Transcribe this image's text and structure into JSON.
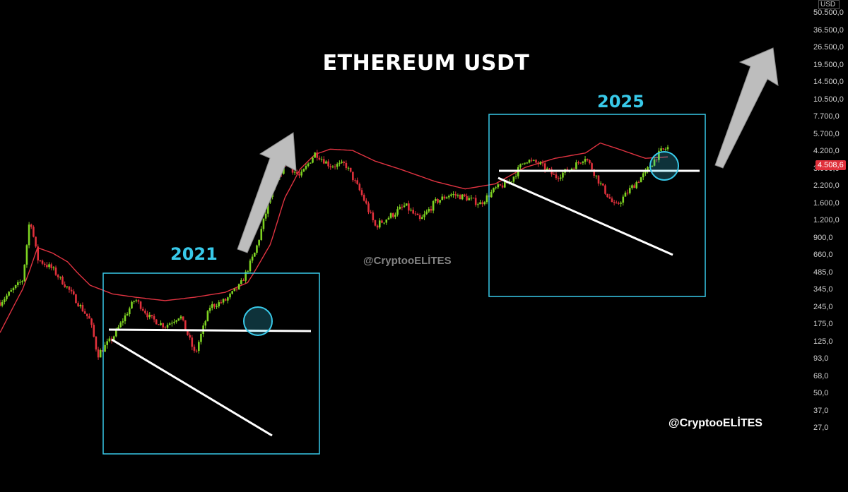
{
  "title": "ETHEREUM USDT",
  "labels": {
    "year_left": "2021",
    "year_right": "2025"
  },
  "watermarks": {
    "center": "@CryptooELİTES",
    "bottom_right": "@CryptooELİTES"
  },
  "colors": {
    "background": "#000000",
    "up_candle": "#7ed321",
    "down_candle": "#e0303b",
    "moving_average": "#e03341",
    "box": "#38c9e9",
    "trendline": "#ffffff",
    "arrow": "#bdbdbd",
    "year_text": "#38c9e9"
  },
  "chart_data": {
    "type": "line",
    "title": "ETHEREUM USDT",
    "scale": "log",
    "y_unit": "USD",
    "y_ticks": [
      "50.500,0",
      "36.500,0",
      "26.500,0",
      "19.500,0",
      "14.500,0",
      "10.500,0",
      "7.700,0",
      "5.700,0",
      "4.200,0",
      "3.000,0",
      "2.200,0",
      "1.600,0",
      "1.200,0",
      "900,0",
      "660,0",
      "485,0",
      "345,0",
      "245,0",
      "175,0",
      "125,0",
      "93,0",
      "68,0",
      "50,0",
      "37,0",
      "27,0"
    ],
    "last_price_label": "4.508,6",
    "price_path": [
      {
        "t": 0,
        "close": 270
      },
      {
        "t": 3,
        "close": 420
      },
      {
        "t": 4,
        "close": 1300
      },
      {
        "t": 5,
        "close": 620
      },
      {
        "t": 7,
        "close": 520
      },
      {
        "t": 9,
        "close": 360
      },
      {
        "t": 12,
        "close": 190
      },
      {
        "t": 13,
        "close": 100
      },
      {
        "t": 15,
        "close": 135
      },
      {
        "t": 18,
        "close": 290
      },
      {
        "t": 20,
        "close": 200
      },
      {
        "t": 22,
        "close": 170
      },
      {
        "t": 24,
        "close": 210
      },
      {
        "t": 26,
        "close": 100
      },
      {
        "t": 28,
        "close": 250
      },
      {
        "t": 30,
        "close": 280
      },
      {
        "t": 32,
        "close": 380
      },
      {
        "t": 34,
        "close": 700
      },
      {
        "t": 36,
        "close": 1800
      },
      {
        "t": 38,
        "close": 3400
      },
      {
        "t": 40,
        "close": 2600
      },
      {
        "t": 42,
        "close": 4100
      },
      {
        "t": 44,
        "close": 3200
      },
      {
        "t": 46,
        "close": 3300
      },
      {
        "t": 48,
        "close": 2000
      },
      {
        "t": 50,
        "close": 1100
      },
      {
        "t": 52,
        "close": 1300
      },
      {
        "t": 54,
        "close": 1550
      },
      {
        "t": 56,
        "close": 1200
      },
      {
        "t": 58,
        "close": 1650
      },
      {
        "t": 60,
        "close": 1900
      },
      {
        "t": 62,
        "close": 1800
      },
      {
        "t": 64,
        "close": 1600
      },
      {
        "t": 66,
        "close": 2100
      },
      {
        "t": 68,
        "close": 2400
      },
      {
        "t": 70,
        "close": 3600
      },
      {
        "t": 72,
        "close": 3300
      },
      {
        "t": 74,
        "close": 2600
      },
      {
        "t": 76,
        "close": 3000
      },
      {
        "t": 78,
        "close": 3800
      },
      {
        "t": 80,
        "close": 2300
      },
      {
        "t": 82,
        "close": 1500
      },
      {
        "t": 84,
        "close": 2100
      },
      {
        "t": 86,
        "close": 2800
      },
      {
        "t": 88,
        "close": 4200
      },
      {
        "t": 89,
        "close": 4508.6
      }
    ],
    "moving_average_path": [
      {
        "t": 0,
        "v": 150
      },
      {
        "t": 3,
        "v": 350
      },
      {
        "t": 5,
        "v": 760
      },
      {
        "t": 7,
        "v": 690
      },
      {
        "t": 9,
        "v": 590
      },
      {
        "t": 12,
        "v": 380
      },
      {
        "t": 15,
        "v": 320
      },
      {
        "t": 18,
        "v": 300
      },
      {
        "t": 22,
        "v": 280
      },
      {
        "t": 26,
        "v": 300
      },
      {
        "t": 30,
        "v": 330
      },
      {
        "t": 33,
        "v": 400
      },
      {
        "t": 36,
        "v": 800
      },
      {
        "t": 38,
        "v": 1800
      },
      {
        "t": 40,
        "v": 3000
      },
      {
        "t": 42,
        "v": 4000
      },
      {
        "t": 44,
        "v": 4400
      },
      {
        "t": 47,
        "v": 4300
      },
      {
        "t": 50,
        "v": 3500
      },
      {
        "t": 54,
        "v": 2900
      },
      {
        "t": 58,
        "v": 2400
      },
      {
        "t": 62,
        "v": 2100
      },
      {
        "t": 66,
        "v": 2300
      },
      {
        "t": 70,
        "v": 3100
      },
      {
        "t": 74,
        "v": 3700
      },
      {
        "t": 78,
        "v": 4100
      },
      {
        "t": 80,
        "v": 4900
      },
      {
        "t": 83,
        "v": 4300
      },
      {
        "t": 86,
        "v": 3700
      },
      {
        "t": 89,
        "v": 3800
      }
    ],
    "patterns": [
      {
        "label": "2021",
        "resistance": 300,
        "box_price_range": [
          35,
          900
        ]
      },
      {
        "label": "2025",
        "resistance": 4000,
        "box_price_range": [
          660,
          10500
        ]
      }
    ]
  }
}
